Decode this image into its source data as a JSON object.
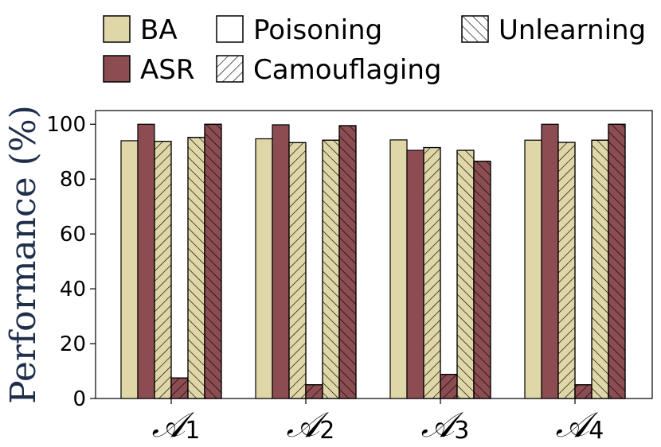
{
  "chart_data": {
    "type": "bar",
    "ylabel": "Performance (%)",
    "xlabel": "",
    "ylim": [
      0,
      105
    ],
    "yticks": [
      0,
      20,
      40,
      60,
      80,
      100
    ],
    "grid": false,
    "legend_position": "top",
    "categories": [
      {
        "main": "𝒜",
        "sub": "1"
      },
      {
        "main": "𝒜",
        "sub": "2"
      },
      {
        "main": "𝒜",
        "sub": "3"
      },
      {
        "main": "𝒜",
        "sub": "4"
      }
    ],
    "metrics": [
      {
        "name": "BA",
        "color": "#e0d7a8"
      },
      {
        "name": "ASR",
        "color": "#8c4d52"
      }
    ],
    "stages": [
      {
        "name": "Poisoning",
        "hatch": "none"
      },
      {
        "name": "Camouflaging",
        "hatch": "forward"
      },
      {
        "name": "Unlearning",
        "hatch": "backward"
      }
    ],
    "series": [
      {
        "metric": "BA",
        "stage": "Poisoning",
        "values": [
          94,
          94.7,
          94.3,
          94.2
        ]
      },
      {
        "metric": "ASR",
        "stage": "Poisoning",
        "values": [
          100,
          99.8,
          90.5,
          100
        ]
      },
      {
        "metric": "BA",
        "stage": "Camouflaging",
        "values": [
          93.8,
          93.3,
          91.5,
          93.4
        ]
      },
      {
        "metric": "ASR",
        "stage": "Camouflaging",
        "values": [
          7.5,
          5,
          8.8,
          5
        ]
      },
      {
        "metric": "BA",
        "stage": "Unlearning",
        "values": [
          95.2,
          94.2,
          90.5,
          94.2
        ]
      },
      {
        "metric": "ASR",
        "stage": "Unlearning",
        "values": [
          100,
          99.5,
          86.5,
          100
        ]
      }
    ]
  }
}
